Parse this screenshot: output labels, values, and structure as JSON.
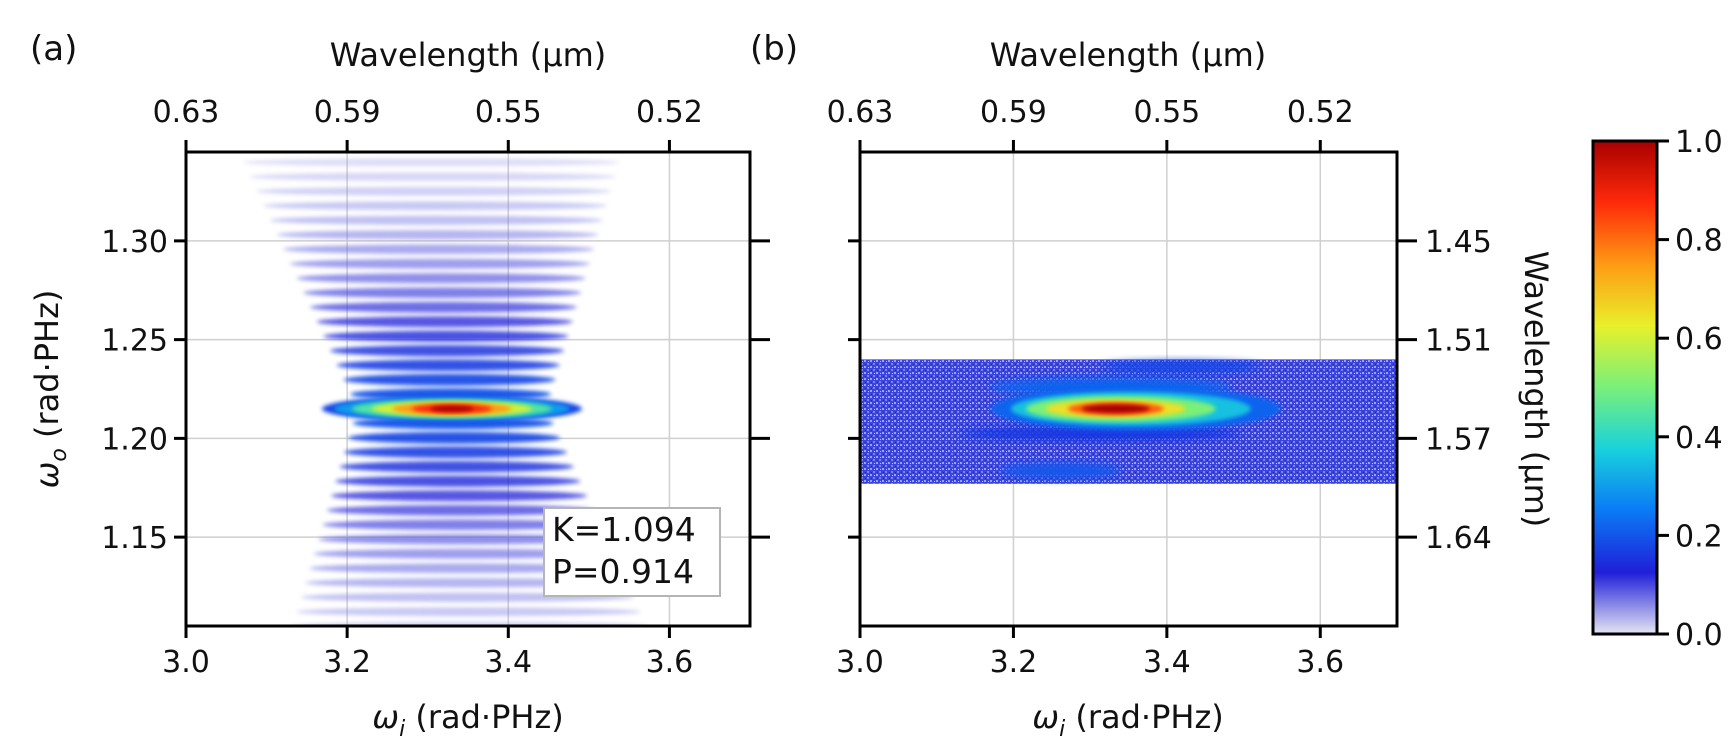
{
  "colors": {
    "colormap": [
      "#e6e6f2",
      "#1f1fd9",
      "#0a7af5",
      "#19d2dc",
      "#79f07a",
      "#e8f02a",
      "#ff9a14",
      "#ff2a0a",
      "#a80000"
    ],
    "grid": "#cfcfcf",
    "frame": "#000000"
  },
  "chart_data": [
    {
      "type": "heatmap",
      "panel_label": "(a)",
      "xlabel": "ω_i (rad·PHz)",
      "xlabel_main": "ω",
      "xlabel_sub": "i",
      "xlabel_rest": " (rad·PHz)",
      "ylabel_main": "ω",
      "ylabel_sub": "o",
      "ylabel_rest": " (rad·PHz)",
      "top_xlabel": "Wavelength (μm)",
      "xlim": [
        3.0,
        3.7
      ],
      "ylim": [
        1.105,
        1.345
      ],
      "x_ticks": [
        3.0,
        3.2,
        3.4,
        3.6
      ],
      "x_tick_labels": [
        "3.0",
        "3.2",
        "3.4",
        "3.6"
      ],
      "y_ticks": [
        1.15,
        1.2,
        1.25,
        1.3
      ],
      "y_tick_labels": [
        "1.15",
        "1.20",
        "1.25",
        "1.30"
      ],
      "top_ticks_at": [
        3.0,
        3.2,
        3.4,
        3.6
      ],
      "top_tick_labels": [
        "0.63",
        "0.59",
        "0.55",
        "0.52"
      ],
      "peak": {
        "x": 3.33,
        "y": 1.215,
        "value": 1.0
      },
      "annotations": [
        "K=1.094",
        "P=0.914"
      ],
      "description": "simulated joint spectral intensity with fringes"
    },
    {
      "type": "heatmap",
      "panel_label": "(b)",
      "xlabel": "ω_i (rad·PHz)",
      "xlabel_main": "ω",
      "xlabel_sub": "i",
      "xlabel_rest": " (rad·PHz)",
      "top_xlabel": "Wavelength (μm)",
      "right_ylabel": "Wavelength (μm)",
      "xlim": [
        3.0,
        3.7
      ],
      "ylim": [
        1.105,
        1.345
      ],
      "x_ticks": [
        3.0,
        3.2,
        3.4,
        3.6
      ],
      "x_tick_labels": [
        "3.0",
        "3.2",
        "3.4",
        "3.6"
      ],
      "top_ticks_at": [
        3.0,
        3.2,
        3.4,
        3.6
      ],
      "top_tick_labels": [
        "0.63",
        "0.59",
        "0.55",
        "0.52"
      ],
      "right_ticks_at": [
        1.15,
        1.2,
        1.25,
        1.3
      ],
      "right_tick_labels": [
        "1.64",
        "1.57",
        "1.51",
        "1.45"
      ],
      "measured_band": [
        1.177,
        1.24
      ],
      "peak": {
        "x": 3.34,
        "y": 1.215,
        "value": 1.0
      },
      "description": "measured joint spectral intensity"
    }
  ],
  "colorbar": {
    "range": [
      0.0,
      1.0
    ],
    "ticks": [
      0.0,
      0.2,
      0.4,
      0.6,
      0.8,
      1.0
    ],
    "tick_labels": [
      "0.0",
      "0.2",
      "0.4",
      "0.6",
      "0.8",
      "1.0"
    ]
  }
}
